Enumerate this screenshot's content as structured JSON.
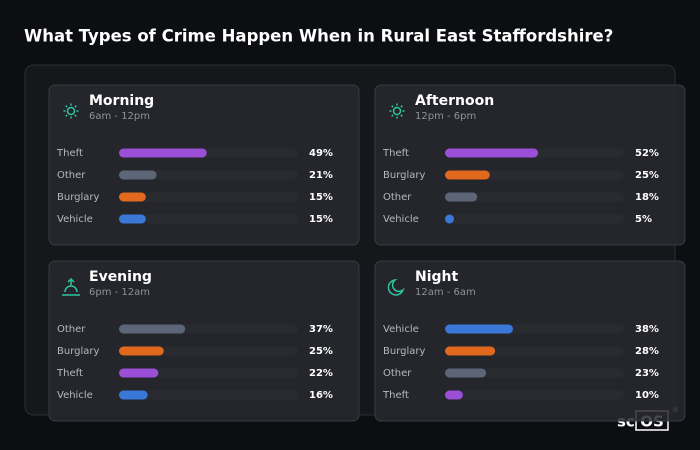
{
  "title": "What Types of Crime Happen When in Rural East Staffordshire?",
  "logo_text": "sc",
  "logo_box": "OS",
  "logo_mark": "®",
  "chart_data": [
    {
      "type": "bar",
      "orientation": "horizontal",
      "title": "Morning",
      "subtitle": "6am - 12pm",
      "categories": [
        "Theft",
        "Other",
        "Burglary",
        "Vehicle"
      ],
      "values": [
        49,
        21,
        15,
        15
      ],
      "value_labels": [
        "49%",
        "21%",
        "15%",
        "15%"
      ],
      "colors": [
        "#9b4fd6",
        "#5d6676",
        "#e0691e",
        "#3a78d8"
      ],
      "xlim": [
        0,
        100
      ]
    },
    {
      "type": "bar",
      "orientation": "horizontal",
      "title": "Afternoon",
      "subtitle": "12pm - 6pm",
      "categories": [
        "Theft",
        "Burglary",
        "Other",
        "Vehicle"
      ],
      "values": [
        52,
        25,
        18,
        5
      ],
      "value_labels": [
        "52%",
        "25%",
        "18%",
        "5%"
      ],
      "colors": [
        "#9b4fd6",
        "#e0691e",
        "#5d6676",
        "#3a78d8"
      ],
      "xlim": [
        0,
        100
      ]
    },
    {
      "type": "bar",
      "orientation": "horizontal",
      "title": "Evening",
      "subtitle": "6pm - 12am",
      "categories": [
        "Other",
        "Burglary",
        "Theft",
        "Vehicle"
      ],
      "values": [
        37,
        25,
        22,
        16
      ],
      "value_labels": [
        "37%",
        "25%",
        "22%",
        "16%"
      ],
      "colors": [
        "#5d6676",
        "#e0691e",
        "#9b4fd6",
        "#3a78d8"
      ],
      "xlim": [
        0,
        100
      ]
    },
    {
      "type": "bar",
      "orientation": "horizontal",
      "title": "Night",
      "subtitle": "12am - 6am",
      "categories": [
        "Vehicle",
        "Burglary",
        "Other",
        "Theft"
      ],
      "values": [
        38,
        28,
        23,
        10
      ],
      "value_labels": [
        "38%",
        "28%",
        "23%",
        "10%"
      ],
      "colors": [
        "#3a78d8",
        "#e0691e",
        "#5d6676",
        "#9b4fd6"
      ],
      "xlim": [
        0,
        100
      ]
    }
  ]
}
